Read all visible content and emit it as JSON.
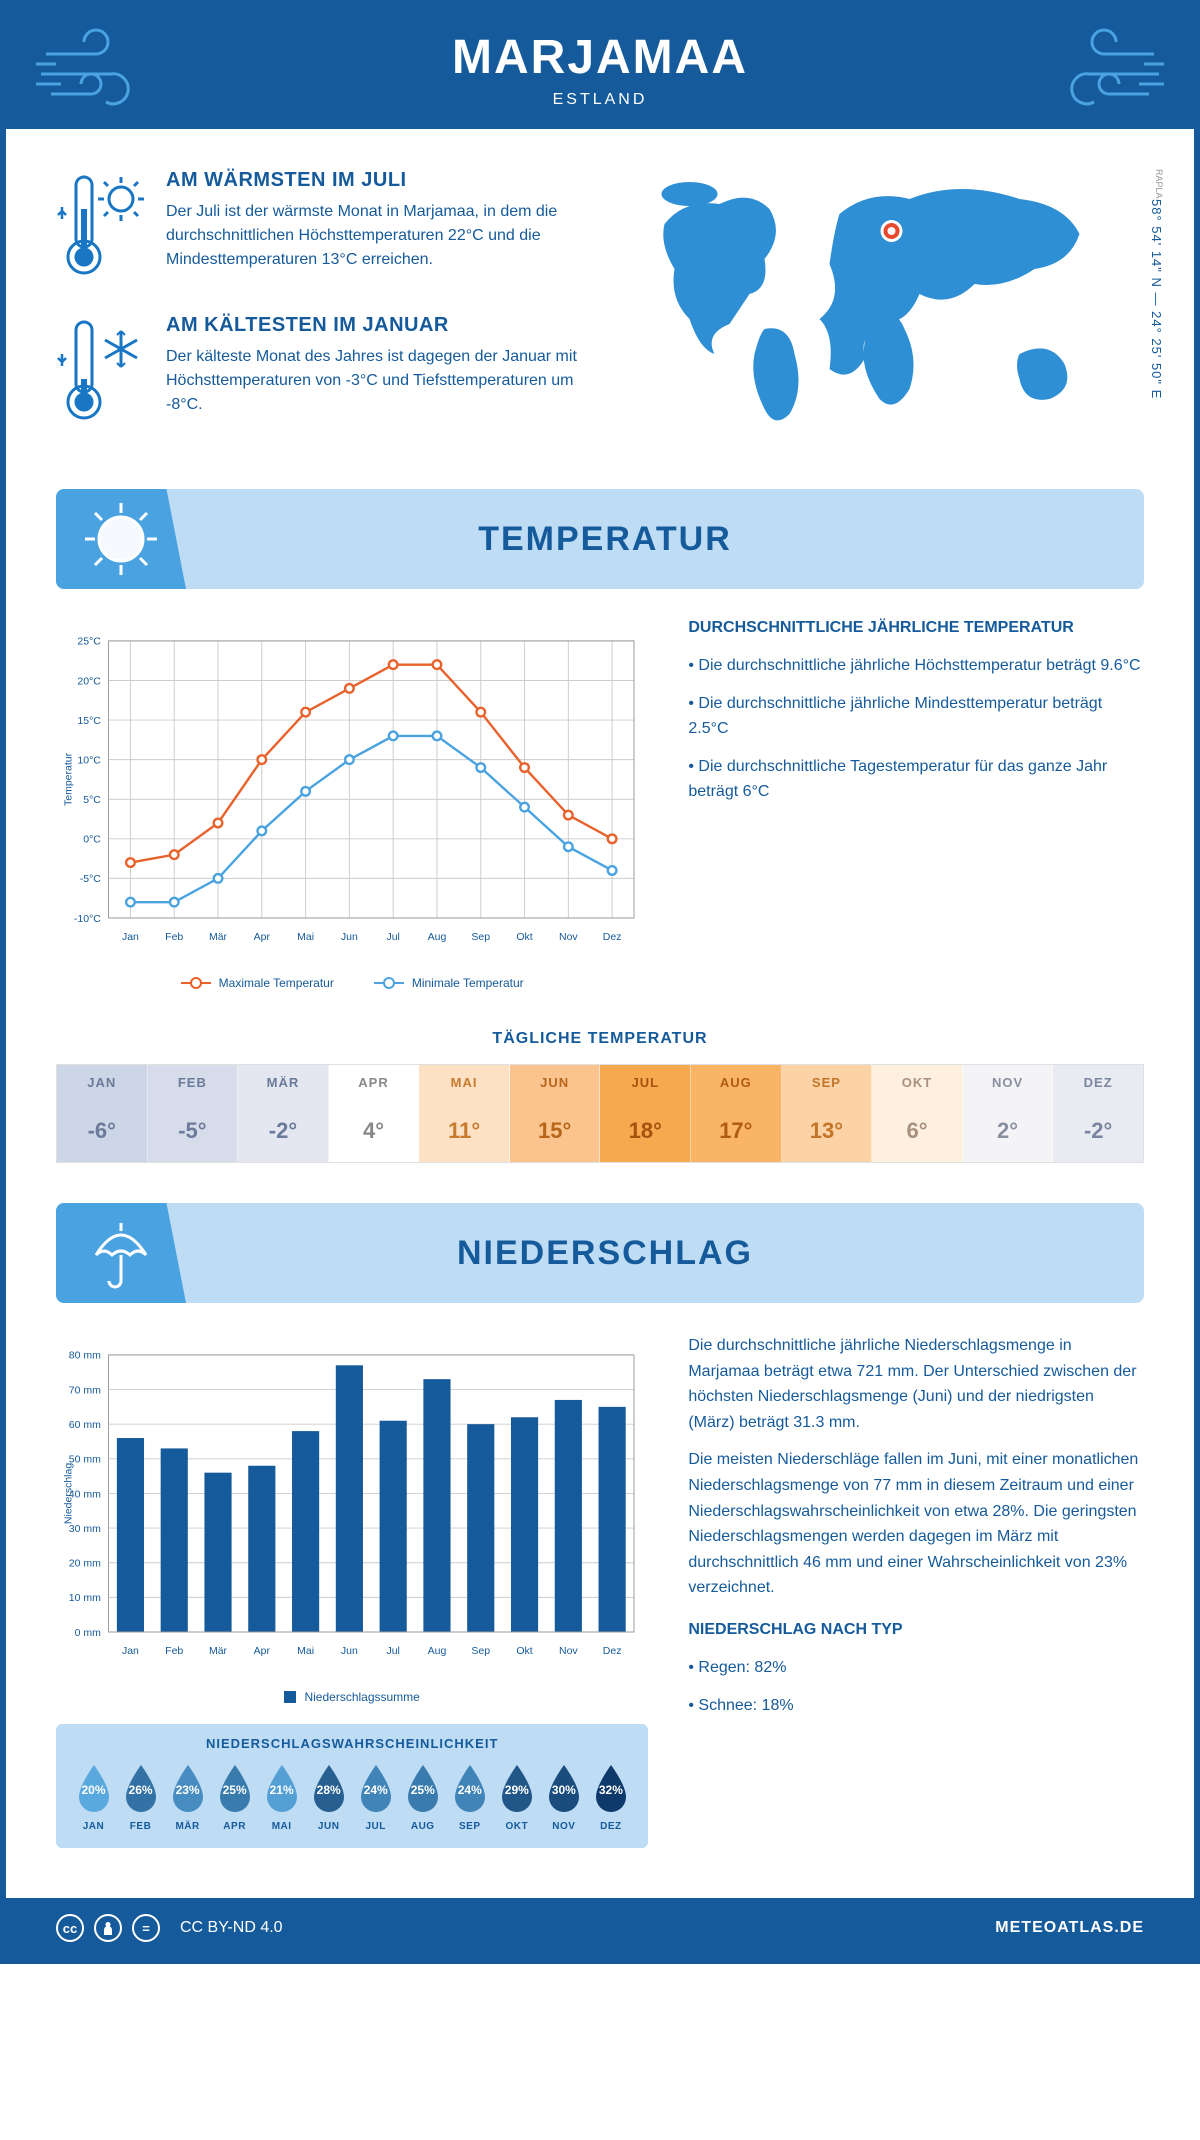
{
  "header": {
    "title": "MARJAMAA",
    "subtitle": "ESTLAND"
  },
  "coords": "58° 54' 14\" N — 24° 25' 50\" E",
  "region": "RAPLA",
  "warmest": {
    "title": "AM WÄRMSTEN IM JULI",
    "text": "Der Juli ist der wärmste Monat in Marjamaa, in dem die durchschnittlichen Höchsttemperaturen 22°C und die Mindesttemperaturen 13°C erreichen."
  },
  "coldest": {
    "title": "AM KÄLTESTEN IM JANUAR",
    "text": "Der kälteste Monat des Jahres ist dagegen der Januar mit Höchsttemperaturen von -3°C und Tiefsttemperaturen um -8°C."
  },
  "section_temp": "TEMPERATUR",
  "section_precip": "NIEDERSCHLAG",
  "months": [
    "Jan",
    "Feb",
    "Mär",
    "Apr",
    "Mai",
    "Jun",
    "Jul",
    "Aug",
    "Sep",
    "Okt",
    "Nov",
    "Dez"
  ],
  "months_upper": [
    "JAN",
    "FEB",
    "MÄR",
    "APR",
    "MAI",
    "JUN",
    "JUL",
    "AUG",
    "SEP",
    "OKT",
    "NOV",
    "DEZ"
  ],
  "temp_chart": {
    "ylabel": "Temperatur",
    "ymin": -10,
    "ymax": 25,
    "ystep": 5,
    "max_series": {
      "label": "Maximale Temperatur",
      "color": "#e8622c",
      "values": [
        -3,
        -2,
        2,
        10,
        16,
        19,
        22,
        22,
        16,
        9,
        3,
        0
      ]
    },
    "min_series": {
      "label": "Minimale Temperatur",
      "color": "#4aa3e0",
      "values": [
        -8,
        -8,
        -5,
        1,
        6,
        10,
        13,
        13,
        9,
        4,
        -1,
        -4
      ]
    }
  },
  "temp_side": {
    "title": "DURCHSCHNITTLICHE JÄHRLICHE TEMPERATUR",
    "bullets": [
      "Die durchschnittliche jährliche Höchsttemperatur beträgt 9.6°C",
      "Die durchschnittliche jährliche Mindesttemperatur beträgt 2.5°C",
      "Die durchschnittliche Tagestemperatur für das ganze Jahr beträgt 6°C"
    ]
  },
  "daily_title": "TÄGLICHE TEMPERATUR",
  "daily": {
    "values": [
      "-6°",
      "-5°",
      "-2°",
      "4°",
      "11°",
      "15°",
      "18°",
      "17°",
      "13°",
      "6°",
      "2°",
      "-2°"
    ],
    "bg": [
      "#cdd6e6",
      "#d7dcea",
      "#e4e7f0",
      "#ffffff",
      "#fde1c4",
      "#fbc48e",
      "#f7a94f",
      "#f9b466",
      "#fcd3a6",
      "#fef0de",
      "#f4f4f7",
      "#e9ebf2"
    ],
    "fg": [
      "#6b7a99",
      "#6b7a99",
      "#6b7a99",
      "#888",
      "#c77a2e",
      "#b8651a",
      "#a5520f",
      "#b05b14",
      "#c27428",
      "#a89080",
      "#8890a0",
      "#7a85a0"
    ]
  },
  "precip_chart": {
    "ylabel": "Niederschlag",
    "ymin": 0,
    "ymax": 80,
    "ystep": 10,
    "series": {
      "label": "Niederschlagssumme",
      "color": "#155a9a",
      "values": [
        56,
        53,
        46,
        48,
        58,
        77,
        61,
        73,
        60,
        62,
        67,
        65
      ]
    }
  },
  "precip_text": {
    "p1": "Die durchschnittliche jährliche Niederschlagsmenge in Marjamaa beträgt etwa 721 mm. Der Unterschied zwischen der höchsten Niederschlagsmenge (Juni) und der niedrigsten (März) beträgt 31.3 mm.",
    "p2": "Die meisten Niederschläge fallen im Juni, mit einer monatlichen Niederschlagsmenge von 77 mm in diesem Zeitraum und einer Niederschlagswahrscheinlichkeit von etwa 28%. Die geringsten Niederschlagsmengen werden dagegen im März mit durchschnittlich 46 mm und einer Wahrscheinlichkeit von 23% verzeichnet.",
    "type_title": "NIEDERSCHLAG NACH TYP",
    "type_bullets": [
      "Regen: 82%",
      "Schnee: 18%"
    ]
  },
  "prob": {
    "title": "NIEDERSCHLAGSWAHRSCHEINLICHKEIT",
    "values": [
      "20%",
      "26%",
      "23%",
      "25%",
      "21%",
      "28%",
      "24%",
      "25%",
      "24%",
      "29%",
      "30%",
      "32%"
    ],
    "shade_min": 20,
    "shade_max": 32,
    "color_light": "#5aa9de",
    "color_dark": "#0d3a6b"
  },
  "footer": {
    "license": "CC BY-ND 4.0",
    "site": "METEOATLAS.DE"
  },
  "colors": {
    "primary": "#155a9a",
    "accent": "#4aa3e0",
    "banner_bg": "#bfdcf5",
    "marker": "#e8482c"
  }
}
